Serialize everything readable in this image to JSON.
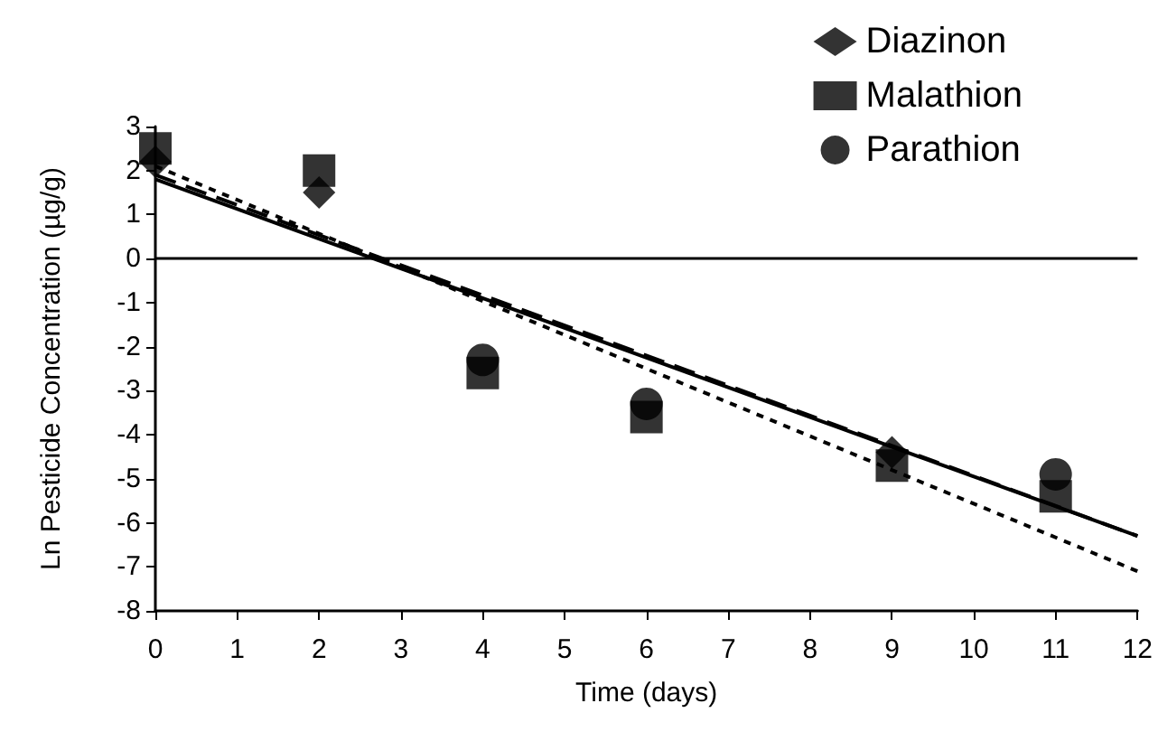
{
  "chart_data": {
    "type": "scatter",
    "xlabel": "Time (days)",
    "ylabel": "Ln Pesticide Concentration (µg/g)",
    "series": [
      {
        "name": "Diazinon",
        "color": "#000000",
        "marker": "diamond",
        "x": [
          0,
          2,
          9
        ],
        "values": [
          2.2,
          1.5,
          -4.4
        ]
      },
      {
        "name": "Malathion",
        "color": "#000000",
        "marker": "square",
        "x": [
          0,
          2,
          4,
          6,
          9,
          11
        ],
        "values": [
          2.5,
          2.0,
          -2.6,
          -3.6,
          -4.7,
          -5.4
        ]
      },
      {
        "name": "Parathion",
        "color": "#000000",
        "marker": "circle",
        "x": [
          4,
          6,
          11
        ],
        "values": [
          -2.3,
          -3.3,
          -4.9
        ]
      },
      {
        "type": "line",
        "color": "#000000",
        "line_style": "solid",
        "marker": "none",
        "x": [
          0,
          12
        ],
        "values": [
          1.8,
          -6.3
        ]
      },
      {
        "type": "line",
        "color": "#000000",
        "line_style": "dotted",
        "marker": "none",
        "x": [
          0,
          12
        ],
        "values": [
          2.1,
          -7.1
        ]
      },
      {
        "type": "line",
        "color": "#000000",
        "line_style": "dashed",
        "marker": "none",
        "x": [
          0,
          12
        ],
        "values": [
          1.9,
          -6.3
        ]
      }
    ],
    "xlim": [
      0,
      12
    ],
    "xticks": [
      0,
      1,
      2,
      3,
      4,
      5,
      6,
      7,
      8,
      9,
      10,
      11,
      12
    ],
    "ylim": [
      -8,
      3
    ],
    "yticks": [
      -8,
      -7,
      -6,
      -5,
      -4,
      -3,
      -2,
      -1,
      0,
      1,
      2,
      3
    ],
    "ref_lines": [
      {
        "axis": "y",
        "value": 0,
        "color": "#000000",
        "line_style": "solid"
      }
    ],
    "grid": false,
    "legend": "top right"
  }
}
